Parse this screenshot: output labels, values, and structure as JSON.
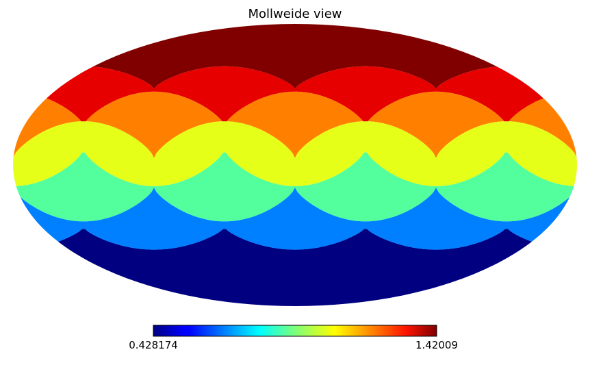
{
  "chart_data": {
    "type": "heatmap",
    "projection": "mollweide",
    "title": "Mollweide view",
    "colormap": "jet",
    "colorbar": {
      "min": 0.428174,
      "max": 1.42009,
      "min_label": "0.428174",
      "max_label": "1.42009",
      "placement": "bottom"
    },
    "bands": [
      {
        "band": 1,
        "color": "#800000",
        "level": 1.42009
      },
      {
        "band": 2,
        "color": "#e60000",
        "level": 1.2547
      },
      {
        "band": 3,
        "color": "#ff8000",
        "level": 1.0894
      },
      {
        "band": 4,
        "color": "#e6ff19",
        "level": 0.9241
      },
      {
        "band": 5,
        "color": "#52ff9c",
        "level": 0.7588
      },
      {
        "band": 6,
        "color": "#0080ff",
        "level": 0.5935
      },
      {
        "band": 7,
        "color": "#000080",
        "level": 0.428174
      }
    ],
    "grid": false
  }
}
